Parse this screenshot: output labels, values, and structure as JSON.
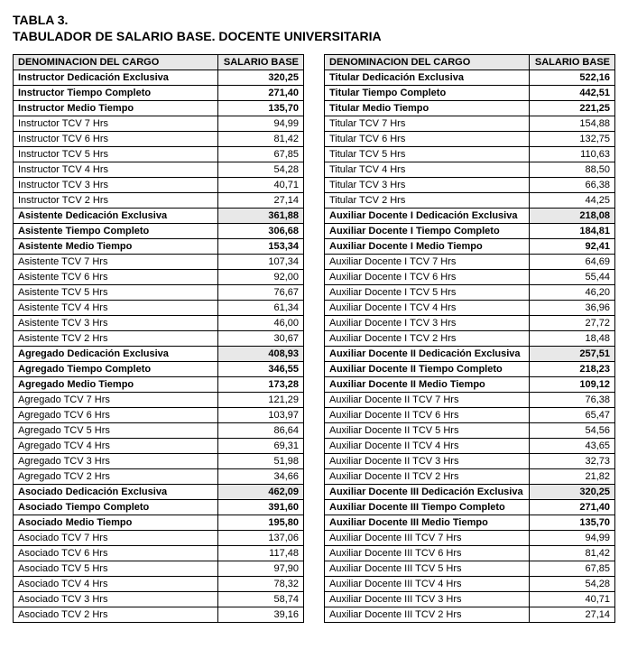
{
  "header": {
    "table_number": "TABLA 3.",
    "title": "TABULADOR DE SALARIO BASE. DOCENTE UNIVERSITARIA"
  },
  "columns": {
    "cargo": "DENOMINACION DEL CARGO",
    "salario": "SALARIO BASE"
  },
  "left_rows": [
    {
      "name": "Instructor Dedicación Exclusiva",
      "val": "320,25",
      "style": "bold"
    },
    {
      "name": "Instructor Tiempo Completo",
      "val": "271,40",
      "style": "bold"
    },
    {
      "name": "Instructor Medio Tiempo",
      "val": "135,70",
      "style": "bold"
    },
    {
      "name": "Instructor TCV 7 Hrs",
      "val": "94,99",
      "style": ""
    },
    {
      "name": "Instructor TCV 6 Hrs",
      "val": "81,42",
      "style": ""
    },
    {
      "name": "Instructor TCV 5 Hrs",
      "val": "67,85",
      "style": ""
    },
    {
      "name": "Instructor TCV 4 Hrs",
      "val": "54,28",
      "style": ""
    },
    {
      "name": "Instructor TCV 3 Hrs",
      "val": "40,71",
      "style": ""
    },
    {
      "name": "Instructor TCV 2 Hrs",
      "val": "27,14",
      "style": ""
    },
    {
      "name": "Asistente Dedicación Exclusiva",
      "val": "361,88",
      "style": "bold-gray"
    },
    {
      "name": "Asistente Tiempo Completo",
      "val": "306,68",
      "style": "bold"
    },
    {
      "name": "Asistente Medio Tiempo",
      "val": "153,34",
      "style": "bold"
    },
    {
      "name": "Asistente TCV 7 Hrs",
      "val": "107,34",
      "style": ""
    },
    {
      "name": "Asistente TCV 6 Hrs",
      "val": "92,00",
      "style": ""
    },
    {
      "name": "Asistente TCV 5 Hrs",
      "val": "76,67",
      "style": ""
    },
    {
      "name": "Asistente TCV 4 Hrs",
      "val": "61,34",
      "style": ""
    },
    {
      "name": "Asistente TCV 3 Hrs",
      "val": "46,00",
      "style": ""
    },
    {
      "name": "Asistente TCV 2 Hrs",
      "val": "30,67",
      "style": ""
    },
    {
      "name": "Agregado Dedicación Exclusiva",
      "val": "408,93",
      "style": "bold-gray"
    },
    {
      "name": "Agregado Tiempo Completo",
      "val": "346,55",
      "style": "bold"
    },
    {
      "name": "Agregado Medio Tiempo",
      "val": "173,28",
      "style": "bold"
    },
    {
      "name": "Agregado TCV 7 Hrs",
      "val": "121,29",
      "style": ""
    },
    {
      "name": "Agregado TCV 6 Hrs",
      "val": "103,97",
      "style": ""
    },
    {
      "name": "Agregado TCV 5 Hrs",
      "val": "86,64",
      "style": ""
    },
    {
      "name": "Agregado TCV 4 Hrs",
      "val": "69,31",
      "style": ""
    },
    {
      "name": "Agregado TCV 3 Hrs",
      "val": "51,98",
      "style": ""
    },
    {
      "name": "Agregado TCV 2 Hrs",
      "val": "34,66",
      "style": ""
    },
    {
      "name": "Asociado Dedicación Exclusiva",
      "val": "462,09",
      "style": "bold-gray"
    },
    {
      "name": "Asociado Tiempo Completo",
      "val": "391,60",
      "style": "bold"
    },
    {
      "name": "Asociado Medio Tiempo",
      "val": "195,80",
      "style": "bold"
    },
    {
      "name": "Asociado TCV 7 Hrs",
      "val": "137,06",
      "style": ""
    },
    {
      "name": "Asociado TCV 6 Hrs",
      "val": "117,48",
      "style": ""
    },
    {
      "name": "Asociado TCV 5 Hrs",
      "val": "97,90",
      "style": ""
    },
    {
      "name": "Asociado TCV 4 Hrs",
      "val": "78,32",
      "style": ""
    },
    {
      "name": "Asociado TCV 3 Hrs",
      "val": "58,74",
      "style": ""
    },
    {
      "name": "Asociado TCV 2 Hrs",
      "val": "39,16",
      "style": ""
    }
  ],
  "right_rows": [
    {
      "name": "Titular Dedicación Exclusiva",
      "val": "522,16",
      "style": "bold"
    },
    {
      "name": "Titular Tiempo Completo",
      "val": "442,51",
      "style": "bold"
    },
    {
      "name": "Titular Medio Tiempo",
      "val": "221,25",
      "style": "bold"
    },
    {
      "name": "Titular TCV 7 Hrs",
      "val": "154,88",
      "style": ""
    },
    {
      "name": "Titular TCV 6 Hrs",
      "val": "132,75",
      "style": ""
    },
    {
      "name": "Titular TCV 5 Hrs",
      "val": "110,63",
      "style": ""
    },
    {
      "name": "Titular TCV 4 Hrs",
      "val": "88,50",
      "style": ""
    },
    {
      "name": "Titular TCV 3 Hrs",
      "val": "66,38",
      "style": ""
    },
    {
      "name": "Titular TCV 2 Hrs",
      "val": "44,25",
      "style": ""
    },
    {
      "name": "Auxiliar Docente I Dedicación Exclusiva",
      "val": "218,08",
      "style": "bold-gray"
    },
    {
      "name": "Auxiliar Docente I Tiempo Completo",
      "val": "184,81",
      "style": "bold"
    },
    {
      "name": "Auxiliar Docente I Medio Tiempo",
      "val": "92,41",
      "style": "bold"
    },
    {
      "name": "Auxiliar Docente I TCV 7 Hrs",
      "val": "64,69",
      "style": ""
    },
    {
      "name": "Auxiliar Docente I TCV 6 Hrs",
      "val": "55,44",
      "style": ""
    },
    {
      "name": "Auxiliar Docente I TCV 5 Hrs",
      "val": "46,20",
      "style": ""
    },
    {
      "name": "Auxiliar Docente I TCV 4 Hrs",
      "val": "36,96",
      "style": ""
    },
    {
      "name": "Auxiliar Docente I TCV 3 Hrs",
      "val": "27,72",
      "style": ""
    },
    {
      "name": "Auxiliar Docente I TCV 2 Hrs",
      "val": "18,48",
      "style": ""
    },
    {
      "name": "Auxiliar Docente II Dedicación Exclusiva",
      "val": "257,51",
      "style": "bold-gray"
    },
    {
      "name": "Auxiliar Docente II Tiempo Completo",
      "val": "218,23",
      "style": "bold"
    },
    {
      "name": "Auxiliar Docente II Medio Tiempo",
      "val": "109,12",
      "style": "bold"
    },
    {
      "name": "Auxiliar Docente II TCV 7 Hrs",
      "val": "76,38",
      "style": ""
    },
    {
      "name": "Auxiliar Docente II TCV 6 Hrs",
      "val": "65,47",
      "style": ""
    },
    {
      "name": "Auxiliar Docente II TCV 5 Hrs",
      "val": "54,56",
      "style": ""
    },
    {
      "name": "Auxiliar Docente II TCV 4 Hrs",
      "val": "43,65",
      "style": ""
    },
    {
      "name": "Auxiliar Docente II TCV 3 Hrs",
      "val": "32,73",
      "style": ""
    },
    {
      "name": "Auxiliar Docente II TCV 2 Hrs",
      "val": "21,82",
      "style": ""
    },
    {
      "name": "Auxiliar Docente III Dedicación Exclusiva",
      "val": "320,25",
      "style": "bold-gray"
    },
    {
      "name": "Auxiliar Docente III Tiempo Completo",
      "val": "271,40",
      "style": "bold"
    },
    {
      "name": "Auxiliar Docente III Medio Tiempo",
      "val": "135,70",
      "style": "bold"
    },
    {
      "name": "Auxiliar Docente III TCV 7 Hrs",
      "val": "94,99",
      "style": ""
    },
    {
      "name": "Auxiliar Docente III TCV 6 Hrs",
      "val": "81,42",
      "style": ""
    },
    {
      "name": "Auxiliar Docente III TCV 5 Hrs",
      "val": "67,85",
      "style": ""
    },
    {
      "name": "Auxiliar Docente III TCV 4 Hrs",
      "val": "54,28",
      "style": ""
    },
    {
      "name": "Auxiliar Docente III TCV 3 Hrs",
      "val": "40,71",
      "style": ""
    },
    {
      "name": "Auxiliar Docente III TCV 2 Hrs",
      "val": "27,14",
      "style": ""
    }
  ]
}
